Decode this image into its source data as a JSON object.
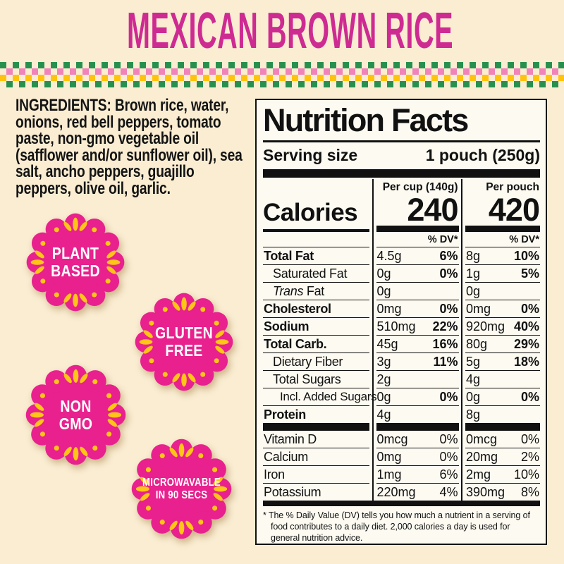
{
  "page": {
    "background_color": "#FAEDD2"
  },
  "header": {
    "title": "MEXICAN BROWN RICE",
    "title_color": "#CE2B92"
  },
  "decorative_border": {
    "green": "#27904F",
    "pink": "#F083BA",
    "yellow": "#FFC30D"
  },
  "ingredients": {
    "label": "INGREDIENTS:",
    "text": " Brown rice, water, onions, red bell peppers, tomato paste, non-gmo vegetable oil (safflower and/or sunflower oil), sea salt, ancho peppers, guajillo peppers, olive oil, garlic."
  },
  "badges": {
    "color": "#E8218E",
    "accent_color": "#FFC517",
    "items": [
      {
        "id": "plant-based",
        "lines": [
          "PLANT",
          "BASED"
        ]
      },
      {
        "id": "gluten-free",
        "lines": [
          "GLUTEN",
          "FREE"
        ]
      },
      {
        "id": "non-gmo",
        "lines": [
          "NON",
          "GMO"
        ]
      },
      {
        "id": "microwavable",
        "lines": [
          "MICROWAVABLE",
          "IN 90 SECS"
        ],
        "small": true
      }
    ]
  },
  "nutrition": {
    "title": "Nutrition Facts",
    "serving_label": "Serving size",
    "serving_value": "1 pouch (250g)",
    "col_headers": [
      "Per cup (140g)",
      "Per pouch"
    ],
    "calories_label": "Calories",
    "calories": [
      "240",
      "420"
    ],
    "dv_header": "% DV*",
    "rows": [
      {
        "name": "Total Fat",
        "bold": true,
        "indent": 0,
        "cup": "4.5g",
        "cup_dv": "6%",
        "pouch": "8g",
        "pouch_dv": "10%"
      },
      {
        "name": "Saturated Fat",
        "indent": 1,
        "cup": "0g",
        "cup_dv": "0%",
        "pouch": "1g",
        "pouch_dv": "5%"
      },
      {
        "name": "Trans Fat",
        "indent": 1,
        "italic_first": true,
        "cup": "0g",
        "cup_dv": "",
        "pouch": "0g",
        "pouch_dv": ""
      },
      {
        "name": "Cholesterol",
        "bold": true,
        "indent": 0,
        "cup": "0mg",
        "cup_dv": "0%",
        "pouch": "0mg",
        "pouch_dv": "0%"
      },
      {
        "name": "Sodium",
        "bold": true,
        "indent": 0,
        "cup": "510mg",
        "cup_dv": "22%",
        "pouch": "920mg",
        "pouch_dv": "40%"
      },
      {
        "name": "Total Carb.",
        "bold": true,
        "indent": 0,
        "cup": "45g",
        "cup_dv": "16%",
        "pouch": "80g",
        "pouch_dv": "29%"
      },
      {
        "name": "Dietary Fiber",
        "indent": 1,
        "cup": "3g",
        "cup_dv": "11%",
        "pouch": "5g",
        "pouch_dv": "18%"
      },
      {
        "name": "Total Sugars",
        "indent": 1,
        "cup": "2g",
        "cup_dv": "",
        "pouch": "4g",
        "pouch_dv": ""
      },
      {
        "name": "Incl. Added Sugars",
        "indent": 2,
        "cup": "0g",
        "cup_dv": "0%",
        "pouch": "0g",
        "pouch_dv": "0%"
      },
      {
        "name": "Protein",
        "bold": true,
        "indent": 0,
        "cup": "4g",
        "cup_dv": "",
        "pouch": "8g",
        "pouch_dv": "",
        "last": true
      }
    ],
    "vitamins": [
      {
        "name": "Vitamin D",
        "cup": "0mcg",
        "cup_dv": "0%",
        "pouch": "0mcg",
        "pouch_dv": "0%"
      },
      {
        "name": "Calcium",
        "cup": "0mg",
        "cup_dv": "0%",
        "pouch": "20mg",
        "pouch_dv": "2%"
      },
      {
        "name": "Iron",
        "cup": "1mg",
        "cup_dv": "6%",
        "pouch": "2mg",
        "pouch_dv": "10%"
      },
      {
        "name": "Potassium",
        "cup": "220mg",
        "cup_dv": "4%",
        "pouch": "390mg",
        "pouch_dv": "8%"
      }
    ],
    "footnote": "* The % Daily Value (DV) tells you how much a nutrient in a serving of food contributes to a daily diet. 2,000 calories a day is used for general nutrition advice."
  }
}
